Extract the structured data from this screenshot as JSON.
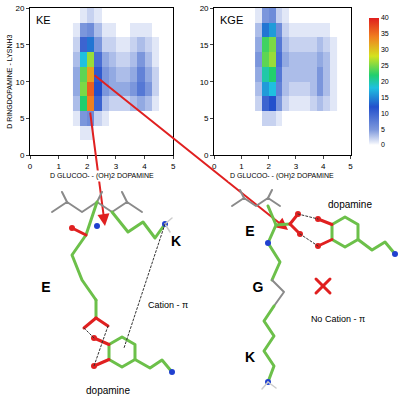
{
  "chart_data": [
    {
      "type": "heatmap",
      "title": "KE",
      "x": [
        1.625,
        1.875,
        2.125,
        2.375,
        2.625,
        2.875,
        3.125,
        3.375,
        3.625,
        3.875,
        4.125,
        4.375
      ],
      "y": [
        1,
        3,
        5,
        7,
        9,
        11,
        13,
        15,
        17,
        19
      ],
      "z": [
        [
          0,
          0,
          0,
          0,
          0,
          0,
          0,
          0,
          0,
          0,
          0,
          0
        ],
        [
          0,
          1,
          1,
          0,
          0,
          0,
          0,
          0,
          0,
          0,
          0,
          0
        ],
        [
          1,
          5,
          6,
          2,
          1,
          0,
          0,
          0,
          0,
          0,
          0,
          0
        ],
        [
          3,
          22,
          34,
          10,
          3,
          2,
          2,
          2,
          3,
          4,
          3,
          1
        ],
        [
          4,
          25,
          36,
          12,
          5,
          4,
          4,
          4,
          5,
          8,
          5,
          2
        ],
        [
          4,
          24,
          32,
          11,
          5,
          4,
          3,
          3,
          4,
          7,
          4,
          2
        ],
        [
          3,
          18,
          26,
          9,
          4,
          3,
          2,
          2,
          3,
          5,
          3,
          1
        ],
        [
          2,
          10,
          14,
          5,
          2,
          2,
          1,
          1,
          2,
          3,
          2,
          1
        ],
        [
          1,
          5,
          6,
          3,
          1,
          1,
          0,
          0,
          1,
          1,
          1,
          0
        ],
        [
          0,
          1,
          2,
          1,
          0,
          0,
          0,
          0,
          0,
          0,
          0,
          0
        ]
      ],
      "xlim": [
        0,
        5
      ],
      "ylim": [
        0,
        20
      ],
      "xticks": [
        0,
        1,
        2,
        3,
        4,
        5
      ],
      "yticks": [
        0,
        5,
        10,
        15,
        20
      ],
      "x_label": "D GLUCOO- - (OH)2 DOPAMINE",
      "y_label": "D RINGDOPAMINE - LYSNH3"
    },
    {
      "type": "heatmap",
      "title": "KGE",
      "x": [
        1.625,
        1.875,
        2.125,
        2.375,
        2.625,
        2.875,
        3.125,
        3.375,
        3.625,
        3.875,
        4.125,
        4.375
      ],
      "y": [
        1,
        3,
        5,
        7,
        9,
        11,
        13,
        15,
        17,
        19
      ],
      "z": [
        [
          0,
          0,
          0,
          0,
          0,
          0,
          0,
          0,
          0,
          0,
          0,
          0
        ],
        [
          0,
          0,
          0,
          0,
          0,
          0,
          0,
          0,
          0,
          0,
          0,
          0
        ],
        [
          0,
          2,
          2,
          1,
          0,
          0,
          0,
          0,
          0,
          0,
          0,
          0
        ],
        [
          2,
          10,
          12,
          5,
          2,
          1,
          1,
          1,
          2,
          3,
          2,
          1
        ],
        [
          3,
          16,
          18,
          7,
          3,
          2,
          2,
          2,
          3,
          5,
          3,
          1
        ],
        [
          4,
          20,
          22,
          8,
          3,
          3,
          3,
          3,
          3,
          5,
          3,
          1
        ],
        [
          5,
          24,
          26,
          9,
          4,
          3,
          3,
          3,
          3,
          4,
          3,
          1
        ],
        [
          4,
          23,
          25,
          8,
          3,
          2,
          2,
          2,
          2,
          3,
          2,
          1
        ],
        [
          3,
          14,
          16,
          6,
          2,
          1,
          1,
          1,
          1,
          1,
          1,
          0
        ],
        [
          1,
          5,
          6,
          2,
          1,
          0,
          0,
          0,
          0,
          0,
          0,
          0
        ]
      ],
      "xlim": [
        0,
        5
      ],
      "ylim": [
        0,
        20
      ],
      "xticks": [
        0,
        1,
        2,
        3,
        4,
        5
      ],
      "yticks": [
        0,
        5,
        10,
        15,
        20
      ],
      "x_label": "D GLUCOO- - (OH)2 DOPAMINE"
    }
  ],
  "colorbar": {
    "range": [
      0,
      40
    ],
    "ticks": [
      0,
      5,
      10,
      15,
      20,
      25,
      30,
      35,
      40
    ]
  },
  "structures": [
    {
      "residues": [
        "E",
        "K"
      ],
      "ligand": "dopamine",
      "interaction": "Cation - π"
    },
    {
      "residues": [
        "E",
        "G",
        "K"
      ],
      "ligand": "dopamine",
      "interaction": "No Cation - π"
    }
  ]
}
